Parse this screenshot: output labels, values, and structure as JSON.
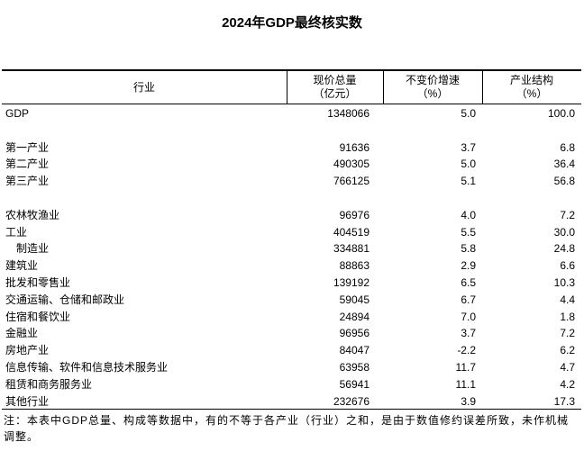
{
  "title": "2024年GDP最终核实数",
  "header": {
    "columns": [
      [
        "行业"
      ],
      [
        "现价总量",
        "（亿元）"
      ],
      [
        "不变价增速",
        "（%）"
      ],
      [
        "产业结构",
        "（%）"
      ]
    ]
  },
  "sections": [
    [
      {
        "name": "GDP",
        "cells": [
          "1348066",
          "5.0",
          "100.0"
        ]
      }
    ],
    [
      {
        "name": "第一产业",
        "cells": [
          "91636",
          "3.7",
          "6.8"
        ]
      },
      {
        "name": "第二产业",
        "cells": [
          "490305",
          "5.0",
          "36.4"
        ]
      },
      {
        "name": "第三产业",
        "cells": [
          "766125",
          "5.1",
          "56.8"
        ]
      }
    ],
    [
      {
        "name": "农林牧渔业",
        "cells": [
          "96976",
          "4.0",
          "7.2"
        ]
      },
      {
        "name": "工业",
        "cells": [
          "404519",
          "5.5",
          "30.0"
        ],
        "children": [
          {
            "name": "制造业",
            "cells": [
              "334881",
              "5.8",
              "24.8"
            ]
          }
        ]
      },
      {
        "name": "建筑业",
        "cells": [
          "88863",
          "2.9",
          "6.6"
        ]
      },
      {
        "name": "批发和零售业",
        "cells": [
          "139192",
          "6.5",
          "10.3"
        ]
      },
      {
        "name": "交通运输、仓储和邮政业",
        "cells": [
          "59045",
          "6.7",
          "4.4"
        ]
      },
      {
        "name": "住宿和餐饮业",
        "cells": [
          "24894",
          "7.0",
          "1.8"
        ]
      },
      {
        "name": "金融业",
        "cells": [
          "96956",
          "3.7",
          "7.2"
        ]
      },
      {
        "name": "房地产业",
        "cells": [
          "84047",
          "-2.2",
          "6.2"
        ]
      },
      {
        "name": "信息传输、软件和信息技术服务业",
        "cells": [
          "63958",
          "11.7",
          "4.7"
        ]
      },
      {
        "name": "租赁和商务服务业",
        "cells": [
          "56941",
          "11.1",
          "4.2"
        ]
      },
      {
        "name": "其他行业",
        "cells": [
          "232676",
          "3.9",
          "17.3"
        ]
      }
    ]
  ],
  "note": "注：本表中GDP总量、构成等数据中，有的不等于各产业（行业）之和，是由于数值修约误差所致，未作机械调整。"
}
